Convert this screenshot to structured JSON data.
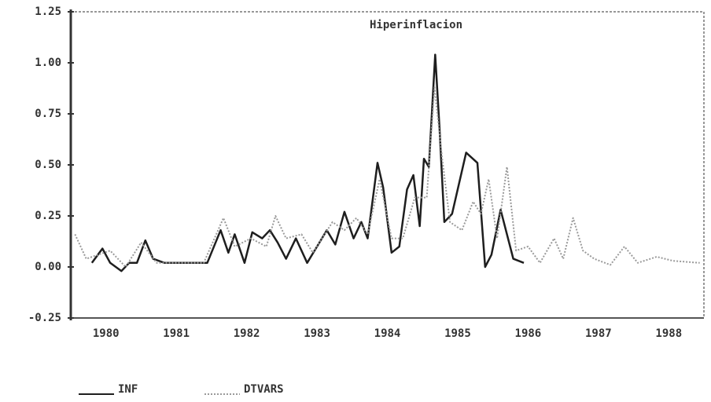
{
  "chart_data": {
    "type": "line",
    "title": "Hiperinflacion",
    "xlim": [
      1980,
      1989
    ],
    "xticks": [
      {
        "value": 1980.5,
        "label": "1980"
      },
      {
        "value": 1981.5,
        "label": "1981"
      },
      {
        "value": 1982.5,
        "label": "1982"
      },
      {
        "value": 1983.5,
        "label": "1983"
      },
      {
        "value": 1984.5,
        "label": "1984"
      },
      {
        "value": 1985.5,
        "label": "1985"
      },
      {
        "value": 1986.5,
        "label": "1986"
      },
      {
        "value": 1987.5,
        "label": "1987"
      },
      {
        "value": 1988.5,
        "label": "1988"
      }
    ],
    "ylim": [
      -0.25,
      1.25
    ],
    "yticks": [
      -0.25,
      {
        "value": 0,
        "label": "0.00"
      },
      0.25,
      {
        "value": 0.5,
        "label": "0.50"
      },
      0.75,
      {
        "value": 1,
        "label": "1.00"
      },
      1.25
    ],
    "grid": false,
    "legend": "bottom",
    "series": [
      {
        "name": "INF",
        "color": "#1e1e1e",
        "line_style": "solid",
        "x": [
          1980.3,
          1980.45,
          1980.56,
          1980.72,
          1980.83,
          1980.94,
          1981.06,
          1981.17,
          1981.33,
          1981.94,
          1982.13,
          1982.24,
          1982.33,
          1982.47,
          1982.58,
          1982.72,
          1982.83,
          1982.94,
          1983.06,
          1983.2,
          1983.36,
          1983.5,
          1983.64,
          1983.76,
          1983.89,
          1984.02,
          1984.13,
          1984.22,
          1984.36,
          1984.44,
          1984.56,
          1984.67,
          1984.78,
          1984.87,
          1984.96,
          1985.02,
          1985.09,
          1985.18,
          1985.24,
          1985.31,
          1985.42,
          1985.62,
          1985.78,
          1985.89,
          1985.98,
          1986.11,
          1986.29,
          1986.44
        ],
        "values": [
          0.02,
          0.09,
          0.02,
          -0.02,
          0.02,
          0.02,
          0.13,
          0.04,
          0.02,
          0.02,
          0.18,
          0.07,
          0.16,
          0.02,
          0.17,
          0.14,
          0.18,
          0.12,
          0.04,
          0.14,
          0.02,
          0.1,
          0.18,
          0.11,
          0.27,
          0.14,
          0.22,
          0.14,
          0.51,
          0.39,
          0.07,
          0.1,
          0.38,
          0.45,
          0.2,
          0.53,
          0.49,
          1.04,
          0.69,
          0.22,
          0.26,
          0.56,
          0.51,
          0.0,
          0.06,
          0.28,
          0.04,
          0.02
        ]
      },
      {
        "name": "DTVARS",
        "color": "#9a9a9a",
        "line_style": "dotted",
        "x": [
          1980.06,
          1980.22,
          1980.56,
          1980.78,
          1981.0,
          1981.22,
          1981.89,
          1982.17,
          1982.33,
          1982.56,
          1982.78,
          1982.91,
          1983.06,
          1983.28,
          1983.44,
          1983.72,
          1983.89,
          1984.06,
          1984.22,
          1984.39,
          1984.56,
          1984.72,
          1984.89,
          1985.06,
          1985.17,
          1985.28,
          1985.39,
          1985.56,
          1985.72,
          1985.83,
          1985.94,
          1986.06,
          1986.2,
          1986.33,
          1986.5,
          1986.67,
          1986.87,
          1987.0,
          1987.14,
          1987.28,
          1987.44,
          1987.67,
          1987.87,
          1988.06,
          1988.33,
          1988.56,
          1988.94
        ],
        "values": [
          0.16,
          0.04,
          0.08,
          0.0,
          0.12,
          0.02,
          0.02,
          0.24,
          0.1,
          0.14,
          0.1,
          0.25,
          0.14,
          0.16,
          0.07,
          0.22,
          0.18,
          0.24,
          0.16,
          0.43,
          0.14,
          0.14,
          0.34,
          0.34,
          0.88,
          0.53,
          0.22,
          0.18,
          0.32,
          0.26,
          0.43,
          0.14,
          0.49,
          0.08,
          0.1,
          0.02,
          0.14,
          0.04,
          0.24,
          0.08,
          0.04,
          0.01,
          0.1,
          0.02,
          0.05,
          0.03,
          0.02
        ]
      }
    ]
  }
}
